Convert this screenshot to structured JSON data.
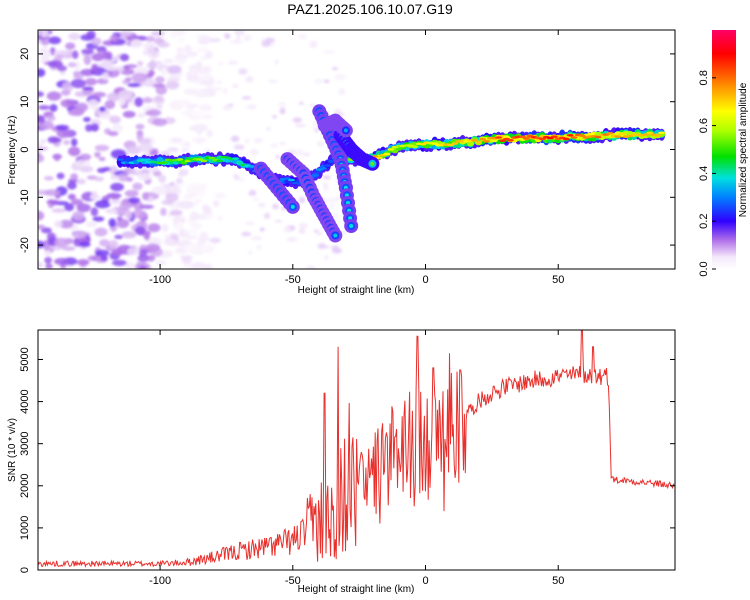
{
  "title": "PAZ1.2025.106.10.07.G19",
  "chart_data": [
    {
      "type": "heatmap",
      "xlabel": "Height of straight line (km)",
      "ylabel": "Frequency (Hz)",
      "xlim": [
        -146,
        94
      ],
      "ylim": [
        -25,
        25
      ],
      "xticks": [
        -100,
        -50,
        0,
        50
      ],
      "xtick_labels": [
        "-100",
        "-50",
        "0",
        "50"
      ],
      "yticks": [
        -20,
        -10,
        0,
        10,
        20
      ],
      "ytick_labels": [
        "-20",
        "-10",
        "0",
        "10",
        "20"
      ],
      "colorbar": {
        "label": "Normalized spectral amplitude",
        "range": [
          0,
          1
        ],
        "ticks": [
          0.0,
          0.2,
          0.4,
          0.6,
          0.8
        ],
        "tick_labels": [
          "0.0",
          "0.2",
          "0.4",
          "0.6",
          "0.8"
        ],
        "colors": [
          "#ffffff",
          "#e0c8f0",
          "#9a4de0",
          "#3a00ff",
          "#0090ff",
          "#00e0e0",
          "#00e000",
          "#ffff00",
          "#ff8000",
          "#ff0000",
          "#ff0066"
        ]
      },
      "ridge": [
        {
          "x": -115,
          "y": -2.5,
          "v": 0.3
        },
        {
          "x": -100,
          "y": -2.5,
          "v": 0.45
        },
        {
          "x": -90,
          "y": -2.3,
          "v": 0.55
        },
        {
          "x": -80,
          "y": -2.0,
          "v": 0.5
        },
        {
          "x": -72,
          "y": -2.0,
          "v": 0.45
        },
        {
          "x": -65,
          "y": -4.0,
          "v": 0.35
        },
        {
          "x": -58,
          "y": -6.0,
          "v": 0.3
        },
        {
          "x": -45,
          "y": -7.0,
          "v": 0.3
        },
        {
          "x": -35,
          "y": -2.0,
          "v": 0.3
        },
        {
          "x": -20,
          "y": -2.0,
          "v": 0.75
        },
        {
          "x": -10,
          "y": 0.5,
          "v": 0.6
        },
        {
          "x": 0,
          "y": 1.0,
          "v": 0.65
        },
        {
          "x": 15,
          "y": 1.5,
          "v": 0.7
        },
        {
          "x": 30,
          "y": 2.3,
          "v": 0.85
        },
        {
          "x": 50,
          "y": 2.5,
          "v": 0.85
        },
        {
          "x": 70,
          "y": 3.0,
          "v": 0.75
        },
        {
          "x": 90,
          "y": 3.2,
          "v": 0.7
        }
      ]
    },
    {
      "type": "line",
      "xlabel": "Height of straight line (km)",
      "ylabel": "SNR (10 * v/v)",
      "xlim": [
        -146,
        94
      ],
      "ylim": [
        0,
        5700
      ],
      "xticks": [
        -100,
        -50,
        0,
        50
      ],
      "xtick_labels": [
        "-100",
        "-50",
        "0",
        "50"
      ],
      "yticks": [
        0,
        1000,
        2000,
        3000,
        4000,
        5000
      ],
      "ytick_labels": [
        "0",
        "1000",
        "2000",
        "3000",
        "4000",
        "5000"
      ],
      "color": "#e8302c",
      "envelope": [
        {
          "x": -146,
          "y": 150
        },
        {
          "x": -120,
          "y": 150
        },
        {
          "x": -100,
          "y": 150
        },
        {
          "x": -90,
          "y": 180
        },
        {
          "x": -80,
          "y": 300
        },
        {
          "x": -70,
          "y": 450
        },
        {
          "x": -60,
          "y": 550
        },
        {
          "x": -50,
          "y": 700
        },
        {
          "x": -45,
          "y": 900
        },
        {
          "x": -40,
          "y": 1200
        },
        {
          "x": -35,
          "y": 1500
        },
        {
          "x": -30,
          "y": 1700
        },
        {
          "x": -25,
          "y": 1900
        },
        {
          "x": -20,
          "y": 2300
        },
        {
          "x": -15,
          "y": 2600
        },
        {
          "x": -10,
          "y": 2800
        },
        {
          "x": -5,
          "y": 3000
        },
        {
          "x": 0,
          "y": 3100
        },
        {
          "x": 5,
          "y": 3200
        },
        {
          "x": 10,
          "y": 3400
        },
        {
          "x": 15,
          "y": 3700
        },
        {
          "x": 20,
          "y": 4000
        },
        {
          "x": 25,
          "y": 4200
        },
        {
          "x": 30,
          "y": 4350
        },
        {
          "x": 40,
          "y": 4500
        },
        {
          "x": 50,
          "y": 4600
        },
        {
          "x": 60,
          "y": 4650
        },
        {
          "x": 69,
          "y": 4600
        },
        {
          "x": 70,
          "y": 2150
        },
        {
          "x": 80,
          "y": 2100
        },
        {
          "x": 94,
          "y": 2000
        }
      ],
      "spikes": [
        {
          "x": -33,
          "y": 5300
        },
        {
          "x": -38,
          "y": 4200
        },
        {
          "x": -3,
          "y": 5550
        },
        {
          "x": 9,
          "y": 5150
        },
        {
          "x": 3,
          "y": 4800
        },
        {
          "x": 13,
          "y": 4750
        },
        {
          "x": 59,
          "y": 5700
        },
        {
          "x": 63,
          "y": 5300
        }
      ]
    }
  ]
}
